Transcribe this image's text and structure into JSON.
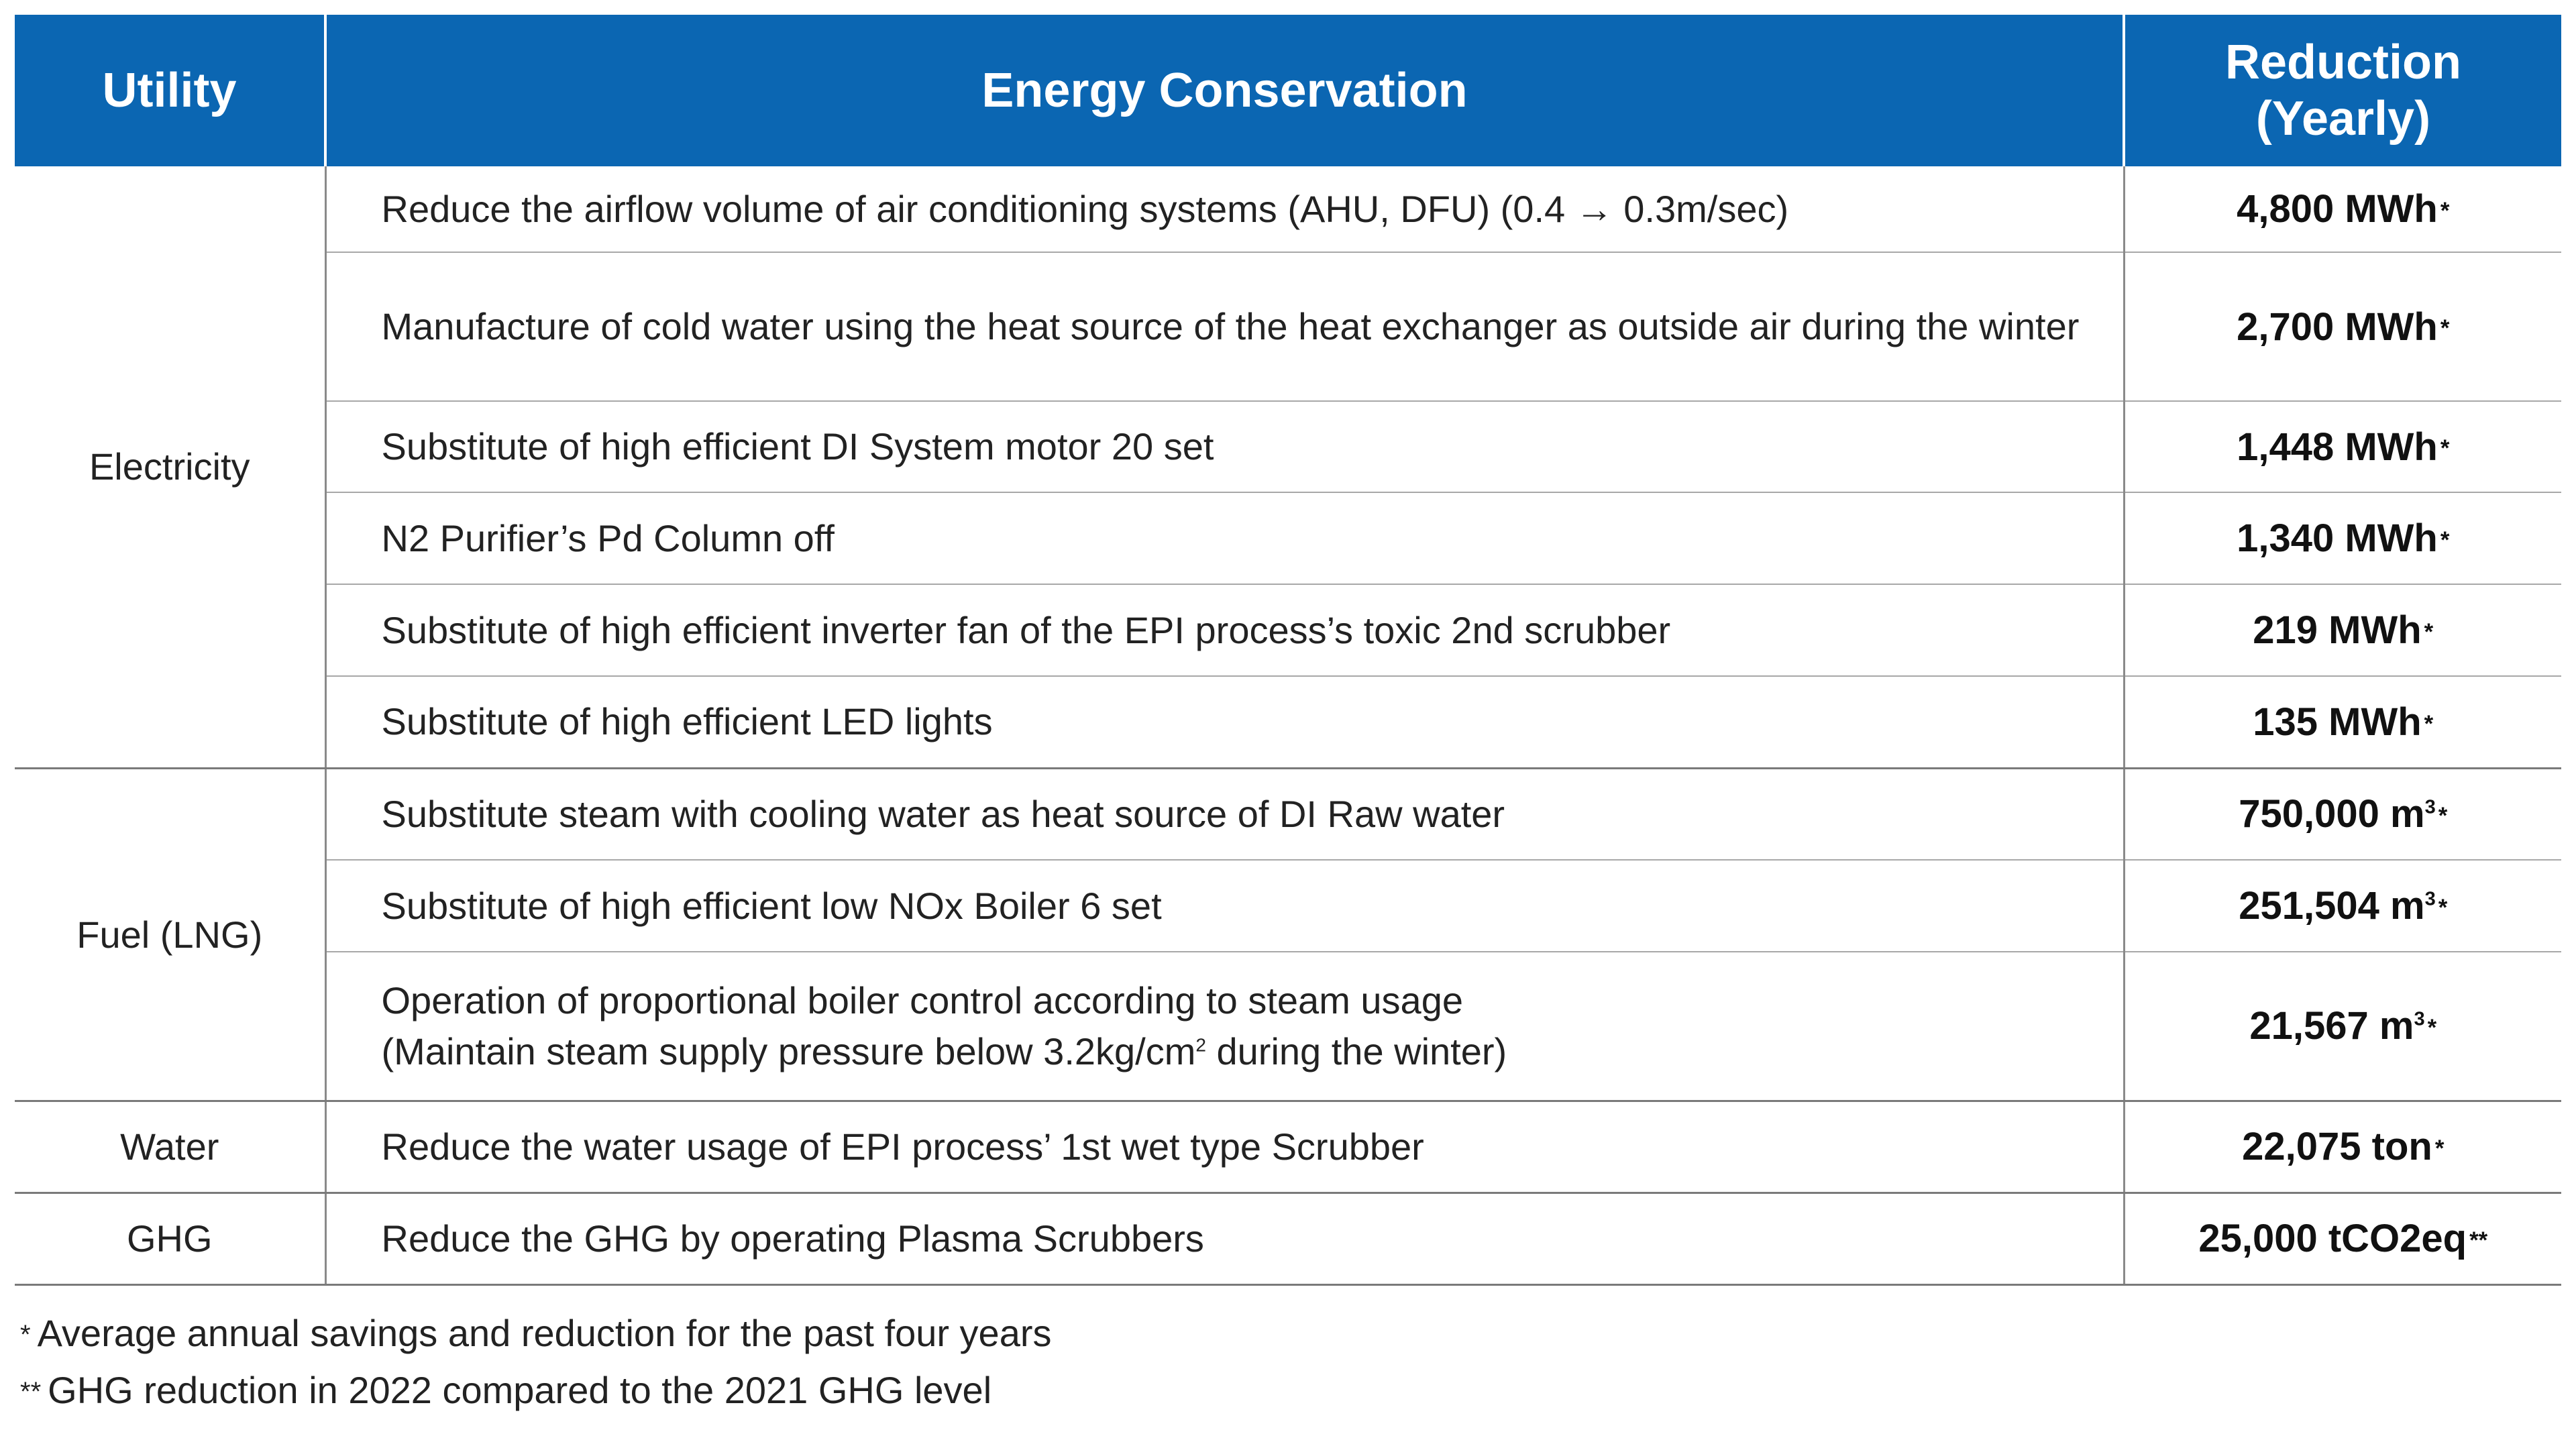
{
  "header": {
    "utility": "Utility",
    "conservation": "Energy Conservation",
    "reduction_line1": "Reduction",
    "reduction_line2": "(Yearly)"
  },
  "groups": [
    {
      "utility": "Electricity",
      "rows": [
        {
          "measure": "Reduce the airflow volume of air conditioning systems (AHU, DFU) (0.4 → 0.3m/sec)",
          "reduction": "4,800 MWh",
          "mark": "*"
        },
        {
          "measure": "Manufacture of cold water using the heat source of the heat exchanger as outside air during the winter",
          "reduction": "2,700 MWh",
          "mark": "*"
        },
        {
          "measure": "Substitute of high efficient DI System motor 20 set",
          "reduction": "1,448 MWh",
          "mark": "*"
        },
        {
          "measure": "N2 Purifier’s Pd Column off",
          "reduction": "1,340 MWh",
          "mark": "*"
        },
        {
          "measure": "Substitute of high efficient inverter fan of the EPI process’s toxic 2nd scrubber",
          "reduction": "219 MWh",
          "mark": "*"
        },
        {
          "measure": "Substitute of high efficient LED lights",
          "reduction": "135 MWh",
          "mark": "*"
        }
      ]
    },
    {
      "utility": "Fuel (LNG)",
      "rows": [
        {
          "measure": "Substitute steam with cooling water as heat source of DI Raw water",
          "reduction": "750,000 m",
          "sup": "3",
          "mark": "*"
        },
        {
          "measure": "Substitute of high efficient low NOx Boiler 6 set",
          "reduction": "251,504 m",
          "sup": "3",
          "mark": "*"
        },
        {
          "measure_line1": "Operation of proportional boiler control according to steam usage",
          "measure_line2_a": "(Maintain steam supply pressure below 3.2kg/cm",
          "measure_line2_sup": "2",
          "measure_line2_b": " during the winter)",
          "reduction": "21,567 m",
          "sup": "3",
          "mark": "*"
        }
      ]
    },
    {
      "utility": "Water",
      "rows": [
        {
          "measure": "Reduce the water usage of EPI process’ 1st wet type Scrubber",
          "reduction": "22,075 ton",
          "mark": "*"
        }
      ]
    },
    {
      "utility": "GHG",
      "rows": [
        {
          "measure": "Reduce the GHG by operating Plasma Scrubbers",
          "reduction": "25,000 tCO2eq",
          "mark": "**"
        }
      ]
    }
  ],
  "footnotes": [
    {
      "mark": "*",
      "text": "Average annual savings and reduction for the past four years"
    },
    {
      "mark": "**",
      "text": "GHG reduction in 2022 compared to the 2021 GHG level"
    }
  ],
  "colors": {
    "header_bg": "#0b66b2",
    "header_text": "#ffffff",
    "rule": "#a8a8a8"
  }
}
